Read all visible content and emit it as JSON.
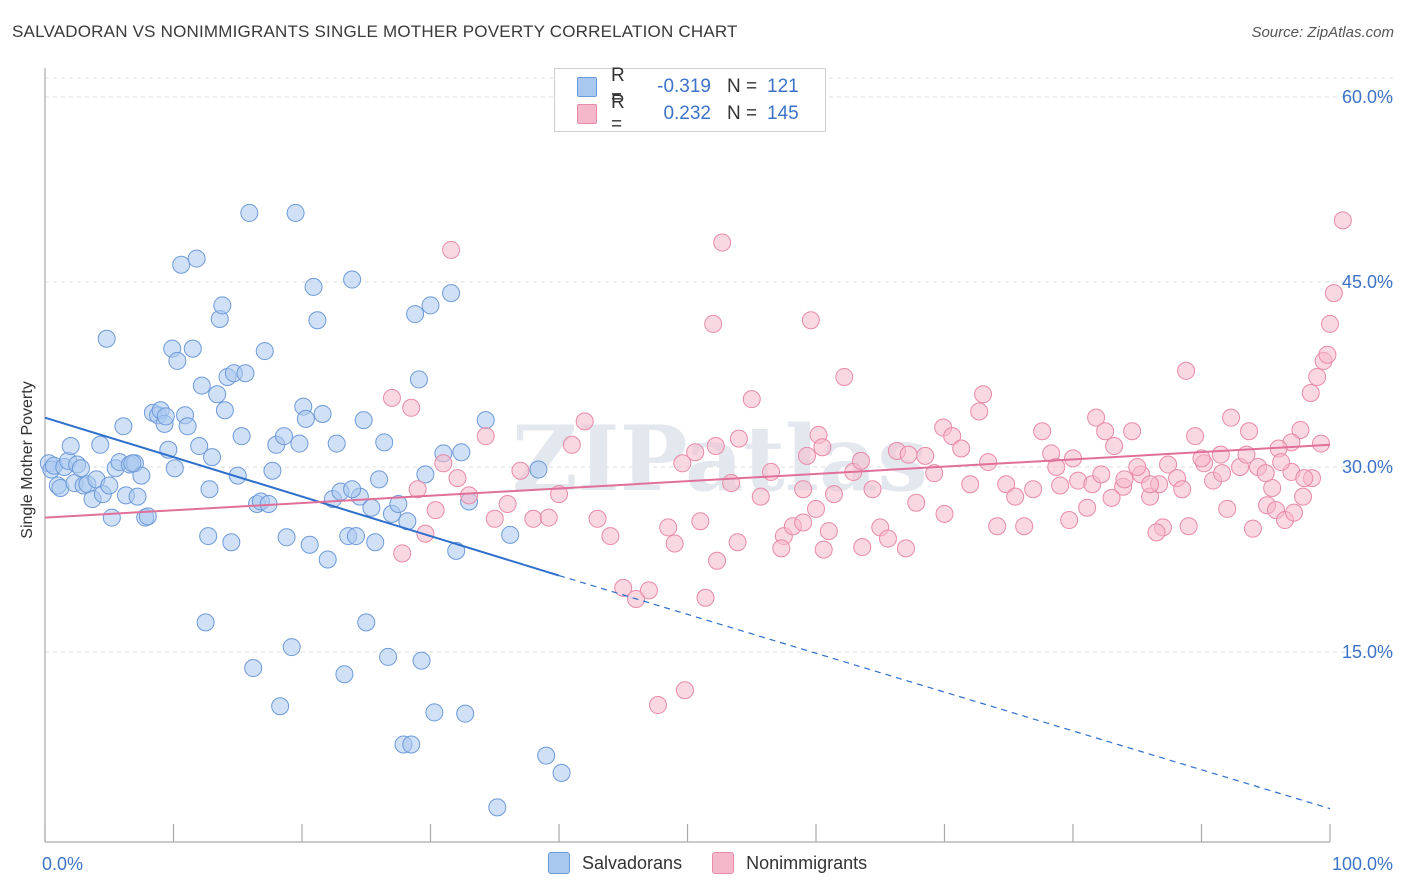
{
  "title": "SALVADORAN VS NONIMMIGRANTS SINGLE MOTHER POVERTY CORRELATION CHART",
  "source": "Source: ZipAtlas.com",
  "watermark": "ZIPatlas",
  "legend": {
    "rows": [
      {
        "r_label": "R =",
        "r_value": "-0.319",
        "n_label": "N =",
        "n_value": "121"
      },
      {
        "r_label": "R =",
        "r_value": "0.232",
        "n_label": "N =",
        "n_value": "145"
      }
    ]
  },
  "bottom_legend": [
    "Salvadorans",
    "Nonimmigrants"
  ],
  "colors": {
    "blue_fill": "#a9c8f0",
    "blue_stroke": "#6d9ad8",
    "blue_line": "#2f6fcc",
    "pink_fill": "#f5b8cb",
    "pink_stroke": "#e88aa8",
    "pink_line": "#e07099",
    "grid": "#dddddd",
    "tick_label": "#3d73c7"
  },
  "chart_data": {
    "type": "scatter",
    "title": "SALVADORAN VS NONIMMIGRANTS SINGLE MOTHER POVERTY CORRELATION CHART",
    "xlabel": "",
    "ylabel": "Single Mother Poverty",
    "xlim": [
      0,
      100
    ],
    "ylim": [
      0,
      65
    ],
    "x_tick_labels": [
      "0.0%",
      "100.0%"
    ],
    "y_ticks": [
      15,
      30,
      45,
      60
    ],
    "y_tick_labels": [
      "15.0%",
      "30.0%",
      "45.0%",
      "60.0%"
    ],
    "grid": true,
    "series": [
      {
        "name": "Salvadorans",
        "color": "blue",
        "trend": {
          "x0": 0,
          "y0": 34.0,
          "x1": 40,
          "y1": 21.2,
          "dashed_to_x": 100,
          "dashed_to_y": 2.3
        },
        "points": [
          [
            0.3,
            30.3
          ],
          [
            0.5,
            29.8
          ],
          [
            0.7,
            30.1
          ],
          [
            1.0,
            28.5
          ],
          [
            1.2,
            28.3
          ],
          [
            1.5,
            30.0
          ],
          [
            1.8,
            30.5
          ],
          [
            2.0,
            31.7
          ],
          [
            2.3,
            28.7
          ],
          [
            2.5,
            30.2
          ],
          [
            3.0,
            28.5
          ],
          [
            3.3,
            28.6
          ],
          [
            3.7,
            27.4
          ],
          [
            4.0,
            29.0
          ],
          [
            4.3,
            31.8
          ],
          [
            4.5,
            27.8
          ],
          [
            4.8,
            40.4
          ],
          [
            5.0,
            28.5
          ],
          [
            5.2,
            25.9
          ],
          [
            5.5,
            29.9
          ],
          [
            5.8,
            30.4
          ],
          [
            6.1,
            33.3
          ],
          [
            6.3,
            27.7
          ],
          [
            6.6,
            30.2
          ],
          [
            7.0,
            30.3
          ],
          [
            7.2,
            27.6
          ],
          [
            7.5,
            29.3
          ],
          [
            7.8,
            25.9
          ],
          [
            8.0,
            26.0
          ],
          [
            8.4,
            34.4
          ],
          [
            8.8,
            34.2
          ],
          [
            9.0,
            34.6
          ],
          [
            9.3,
            33.5
          ],
          [
            9.6,
            31.4
          ],
          [
            9.9,
            39.6
          ],
          [
            10.1,
            29.9
          ],
          [
            10.3,
            38.6
          ],
          [
            10.6,
            46.4
          ],
          [
            10.9,
            34.2
          ],
          [
            11.1,
            33.3
          ],
          [
            11.5,
            39.6
          ],
          [
            11.8,
            46.9
          ],
          [
            12.0,
            31.7
          ],
          [
            12.2,
            36.6
          ],
          [
            12.5,
            17.4
          ],
          [
            12.7,
            24.4
          ],
          [
            13.0,
            30.8
          ],
          [
            13.4,
            35.9
          ],
          [
            13.6,
            42.0
          ],
          [
            13.8,
            43.1
          ],
          [
            14.0,
            34.6
          ],
          [
            14.2,
            37.3
          ],
          [
            14.5,
            23.9
          ],
          [
            14.7,
            37.6
          ],
          [
            15.0,
            29.3
          ],
          [
            15.3,
            32.5
          ],
          [
            15.6,
            37.6
          ],
          [
            15.9,
            50.6
          ],
          [
            16.2,
            13.7
          ],
          [
            16.5,
            27.0
          ],
          [
            16.8,
            27.2
          ],
          [
            17.1,
            39.4
          ],
          [
            17.4,
            27.0
          ],
          [
            17.7,
            29.7
          ],
          [
            18.0,
            31.8
          ],
          [
            18.3,
            10.6
          ],
          [
            18.6,
            32.5
          ],
          [
            18.8,
            24.3
          ],
          [
            19.2,
            15.4
          ],
          [
            19.5,
            50.6
          ],
          [
            19.8,
            31.9
          ],
          [
            20.1,
            34.9
          ],
          [
            20.3,
            33.9
          ],
          [
            20.6,
            23.7
          ],
          [
            20.9,
            44.6
          ],
          [
            21.2,
            41.9
          ],
          [
            21.6,
            34.3
          ],
          [
            22.0,
            22.5
          ],
          [
            22.4,
            27.4
          ],
          [
            22.7,
            31.9
          ],
          [
            23.0,
            28.0
          ],
          [
            23.3,
            13.2
          ],
          [
            23.6,
            24.4
          ],
          [
            23.9,
            45.2
          ],
          [
            24.2,
            24.4
          ],
          [
            24.5,
            27.6
          ],
          [
            24.8,
            33.8
          ],
          [
            25.0,
            17.4
          ],
          [
            25.4,
            26.7
          ],
          [
            25.7,
            23.9
          ],
          [
            26.0,
            29.0
          ],
          [
            26.4,
            32.0
          ],
          [
            26.7,
            14.6
          ],
          [
            27.0,
            26.2
          ],
          [
            27.5,
            27.0
          ],
          [
            27.9,
            7.5
          ],
          [
            28.2,
            25.6
          ],
          [
            28.5,
            7.5
          ],
          [
            28.8,
            42.4
          ],
          [
            29.1,
            37.1
          ],
          [
            29.3,
            14.3
          ],
          [
            29.6,
            29.4
          ],
          [
            30.0,
            43.1
          ],
          [
            30.3,
            10.1
          ],
          [
            31.0,
            31.1
          ],
          [
            31.6,
            44.1
          ],
          [
            32.0,
            23.2
          ],
          [
            32.4,
            31.2
          ],
          [
            32.7,
            10.0
          ],
          [
            33.0,
            27.2
          ],
          [
            34.3,
            33.8
          ],
          [
            35.2,
            2.4
          ],
          [
            36.2,
            24.5
          ],
          [
            38.4,
            29.8
          ],
          [
            39.0,
            6.6
          ],
          [
            40.2,
            5.2
          ],
          [
            9.4,
            34.1
          ],
          [
            6.8,
            30.3
          ],
          [
            2.8,
            29.9
          ],
          [
            12.8,
            28.2
          ],
          [
            23.9,
            28.2
          ]
        ]
      },
      {
        "name": "Nonimmigrants",
        "color": "pink",
        "trend": {
          "x0": 0,
          "y0": 25.9,
          "x1": 100,
          "y1": 31.8
        },
        "points": [
          [
            27.0,
            35.6
          ],
          [
            27.8,
            23.0
          ],
          [
            28.5,
            34.8
          ],
          [
            29.0,
            28.2
          ],
          [
            29.6,
            24.6
          ],
          [
            30.4,
            26.5
          ],
          [
            31.0,
            30.3
          ],
          [
            31.6,
            47.6
          ],
          [
            32.1,
            29.1
          ],
          [
            33.0,
            27.7
          ],
          [
            34.3,
            32.5
          ],
          [
            35.0,
            25.8
          ],
          [
            36.0,
            27.0
          ],
          [
            37.0,
            29.7
          ],
          [
            38.0,
            25.8
          ],
          [
            39.2,
            25.9
          ],
          [
            40.0,
            27.8
          ],
          [
            41.0,
            31.8
          ],
          [
            42.0,
            33.7
          ],
          [
            43.0,
            25.8
          ],
          [
            44.0,
            24.4
          ],
          [
            45.0,
            20.2
          ],
          [
            46.0,
            19.3
          ],
          [
            47.0,
            20.0
          ],
          [
            47.7,
            10.7
          ],
          [
            48.5,
            25.1
          ],
          [
            49.0,
            23.8
          ],
          [
            49.8,
            11.9
          ],
          [
            50.6,
            31.2
          ],
          [
            51.0,
            25.6
          ],
          [
            52.0,
            41.6
          ],
          [
            52.7,
            48.2
          ],
          [
            53.4,
            28.7
          ],
          [
            54.0,
            32.3
          ],
          [
            55.0,
            35.5
          ],
          [
            55.7,
            27.6
          ],
          [
            56.5,
            29.6
          ],
          [
            57.5,
            24.4
          ],
          [
            58.2,
            25.2
          ],
          [
            59.0,
            28.2
          ],
          [
            59.6,
            41.9
          ],
          [
            60.0,
            26.6
          ],
          [
            60.6,
            23.3
          ],
          [
            61.0,
            24.8
          ],
          [
            62.2,
            37.3
          ],
          [
            62.9,
            29.6
          ],
          [
            63.6,
            23.5
          ],
          [
            64.4,
            28.2
          ],
          [
            65.0,
            25.1
          ],
          [
            65.6,
            24.2
          ],
          [
            66.3,
            31.3
          ],
          [
            67.0,
            23.4
          ],
          [
            67.8,
            27.1
          ],
          [
            68.5,
            30.9
          ],
          [
            69.2,
            29.5
          ],
          [
            69.9,
            33.2
          ],
          [
            70.6,
            32.5
          ],
          [
            71.3,
            31.5
          ],
          [
            72.0,
            28.6
          ],
          [
            72.7,
            34.5
          ],
          [
            73.4,
            30.4
          ],
          [
            74.1,
            25.2
          ],
          [
            74.8,
            28.6
          ],
          [
            75.5,
            27.6
          ],
          [
            76.2,
            25.2
          ],
          [
            76.9,
            28.2
          ],
          [
            77.6,
            32.9
          ],
          [
            78.3,
            31.1
          ],
          [
            79.0,
            28.5
          ],
          [
            79.7,
            25.7
          ],
          [
            80.4,
            28.9
          ],
          [
            81.1,
            26.7
          ],
          [
            81.8,
            34.0
          ],
          [
            82.5,
            32.9
          ],
          [
            83.2,
            31.7
          ],
          [
            83.9,
            28.4
          ],
          [
            84.6,
            32.9
          ],
          [
            85.3,
            29.4
          ],
          [
            86.0,
            27.6
          ],
          [
            86.7,
            28.6
          ],
          [
            87.4,
            30.2
          ],
          [
            88.1,
            29.1
          ],
          [
            88.8,
            37.8
          ],
          [
            89.5,
            32.5
          ],
          [
            90.2,
            30.3
          ],
          [
            90.9,
            28.9
          ],
          [
            91.6,
            29.5
          ],
          [
            92.3,
            34.0
          ],
          [
            93.0,
            30.0
          ],
          [
            93.7,
            32.9
          ],
          [
            94.4,
            30.0
          ],
          [
            95.1,
            26.9
          ],
          [
            95.8,
            26.5
          ],
          [
            96.5,
            25.7
          ],
          [
            97.2,
            26.3
          ],
          [
            97.9,
            27.6
          ],
          [
            98.6,
            29.1
          ],
          [
            99.3,
            31.9
          ],
          [
            59.3,
            30.9
          ],
          [
            49.6,
            30.3
          ],
          [
            60.2,
            32.6
          ],
          [
            60.5,
            31.6
          ],
          [
            61.4,
            27.8
          ],
          [
            70.0,
            26.2
          ],
          [
            73.0,
            35.9
          ],
          [
            78.7,
            30.0
          ],
          [
            80.0,
            30.7
          ],
          [
            81.5,
            28.6
          ],
          [
            82.2,
            29.4
          ],
          [
            86.0,
            28.6
          ],
          [
            88.5,
            28.2
          ],
          [
            90.0,
            30.7
          ],
          [
            91.5,
            31.0
          ],
          [
            93.5,
            31.0
          ],
          [
            95.5,
            28.3
          ],
          [
            97.0,
            29.6
          ],
          [
            98.0,
            29.1
          ],
          [
            99.0,
            37.3
          ],
          [
            99.5,
            38.6
          ],
          [
            99.8,
            39.1
          ],
          [
            98.5,
            36.0
          ],
          [
            97.7,
            33.0
          ],
          [
            97.0,
            32.0
          ],
          [
            96.0,
            31.5
          ],
          [
            95.0,
            29.5
          ],
          [
            100.0,
            41.6
          ],
          [
            100.3,
            44.1
          ],
          [
            101.0,
            50.0
          ],
          [
            59.0,
            25.5
          ],
          [
            67.2,
            31.0
          ],
          [
            84.0,
            29.0
          ],
          [
            85.0,
            30.0
          ],
          [
            92.0,
            26.6
          ],
          [
            94.0,
            25.0
          ],
          [
            96.2,
            30.4
          ],
          [
            89.0,
            25.2
          ],
          [
            87.0,
            25.1
          ],
          [
            86.5,
            24.7
          ],
          [
            83.0,
            27.5
          ],
          [
            63.5,
            30.5
          ],
          [
            57.3,
            23.4
          ],
          [
            53.9,
            23.9
          ],
          [
            52.3,
            22.4
          ],
          [
            51.4,
            19.4
          ],
          [
            52.2,
            31.7
          ]
        ]
      }
    ]
  }
}
